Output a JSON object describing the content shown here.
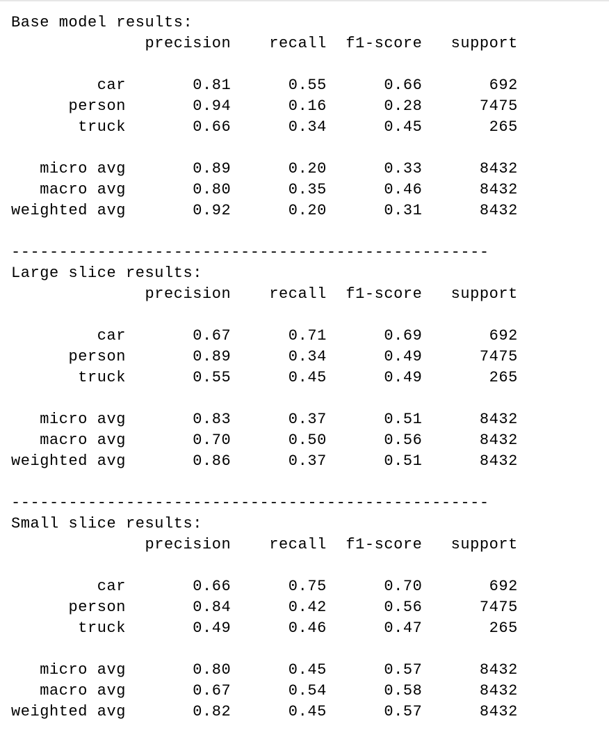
{
  "output": {
    "lines": [
      "Base model results:",
      "              precision    recall  f1-score   support",
      "",
      "         car       0.81      0.55      0.66       692",
      "      person       0.94      0.16      0.28      7475",
      "       truck       0.66      0.34      0.45       265",
      "",
      "   micro avg       0.89      0.20      0.33      8432",
      "   macro avg       0.80      0.35      0.46      8432",
      "weighted avg       0.92      0.20      0.31      8432",
      "",
      "--------------------------------------------------",
      "Large slice results:",
      "              precision    recall  f1-score   support",
      "",
      "         car       0.67      0.71      0.69       692",
      "      person       0.89      0.34      0.49      7475",
      "       truck       0.55      0.45      0.49       265",
      "",
      "   micro avg       0.83      0.37      0.51      8432",
      "   macro avg       0.70      0.50      0.56      8432",
      "weighted avg       0.86      0.37      0.51      8432",
      "",
      "--------------------------------------------------",
      "Small slice results:",
      "              precision    recall  f1-score   support",
      "",
      "         car       0.66      0.75      0.70       692",
      "      person       0.84      0.42      0.56      7475",
      "       truck       0.49      0.46      0.47       265",
      "",
      "   micro avg       0.80      0.45      0.57      8432",
      "   macro avg       0.67      0.54      0.58      8432",
      "weighted avg       0.82      0.45      0.57      8432"
    ]
  }
}
